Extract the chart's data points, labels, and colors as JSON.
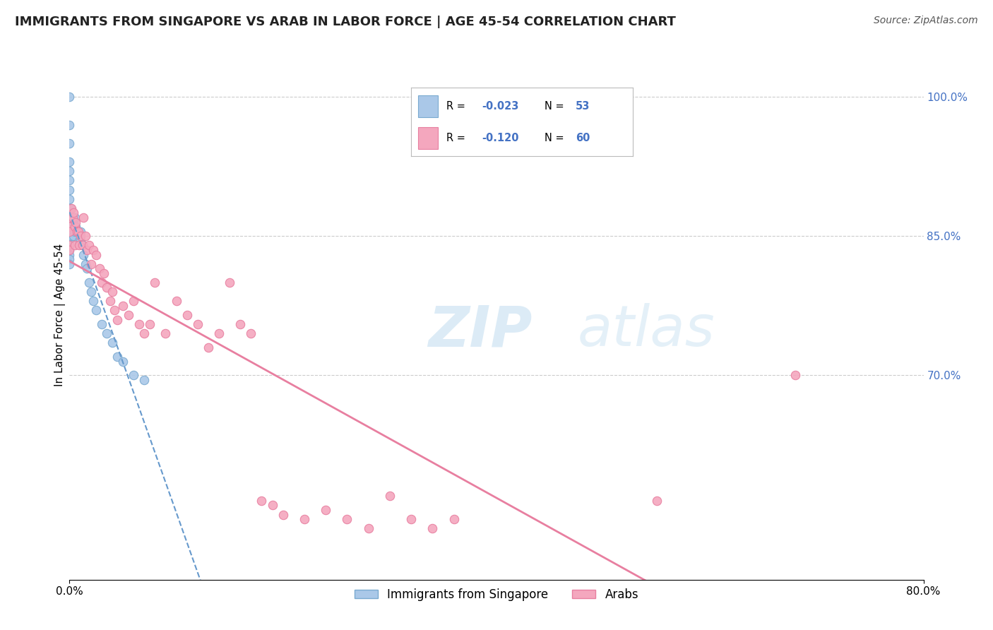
{
  "title": "IMMIGRANTS FROM SINGAPORE VS ARAB IN LABOR FORCE | AGE 45-54 CORRELATION CHART",
  "source": "Source: ZipAtlas.com",
  "ylabel": "In Labor Force | Age 45-54",
  "xlim": [
    0.0,
    0.8
  ],
  "ylim": [
    0.48,
    1.05
  ],
  "yticks": [
    0.7,
    0.85,
    1.0
  ],
  "ytick_labels": [
    "70.0%",
    "85.0%",
    "100.0%"
  ],
  "grid_color": "#cccccc",
  "background_color": "#ffffff",
  "singapore_color": "#aac8e8",
  "singapore_edge": "#7aaad0",
  "arab_color": "#f4a7be",
  "arab_edge": "#e87fa0",
  "singapore_R": "-0.023",
  "singapore_N": "53",
  "arab_R": "-0.120",
  "arab_N": "60",
  "trend_singapore_color": "#6699cc",
  "trend_arab_color": "#e87fa0",
  "watermark_zip": "ZIP",
  "watermark_atlas": "atlas",
  "singapore_points_x": [
    0.0,
    0.0,
    0.0,
    0.0,
    0.0,
    0.0,
    0.0,
    0.0,
    0.0,
    0.0,
    0.0,
    0.0,
    0.0,
    0.0,
    0.0,
    0.0,
    0.0,
    0.0,
    0.0,
    0.0,
    0.001,
    0.001,
    0.001,
    0.002,
    0.002,
    0.002,
    0.003,
    0.003,
    0.004,
    0.004,
    0.005,
    0.005,
    0.006,
    0.007,
    0.008,
    0.009,
    0.01,
    0.01,
    0.012,
    0.013,
    0.015,
    0.016,
    0.018,
    0.02,
    0.022,
    0.025,
    0.03,
    0.035,
    0.04,
    0.045,
    0.05,
    0.06,
    0.07
  ],
  "singapore_points_y": [
    1.0,
    0.97,
    0.95,
    0.93,
    0.92,
    0.91,
    0.9,
    0.89,
    0.88,
    0.875,
    0.87,
    0.86,
    0.855,
    0.85,
    0.845,
    0.84,
    0.835,
    0.83,
    0.825,
    0.82,
    0.88,
    0.865,
    0.855,
    0.87,
    0.86,
    0.85,
    0.87,
    0.855,
    0.865,
    0.85,
    0.87,
    0.855,
    0.86,
    0.855,
    0.855,
    0.845,
    0.855,
    0.845,
    0.84,
    0.83,
    0.82,
    0.815,
    0.8,
    0.79,
    0.78,
    0.77,
    0.755,
    0.745,
    0.735,
    0.72,
    0.715,
    0.7,
    0.695
  ],
  "arab_points_x": [
    0.0,
    0.0,
    0.0,
    0.0,
    0.0,
    0.002,
    0.003,
    0.004,
    0.005,
    0.005,
    0.006,
    0.007,
    0.008,
    0.009,
    0.01,
    0.012,
    0.013,
    0.015,
    0.016,
    0.018,
    0.02,
    0.022,
    0.025,
    0.028,
    0.03,
    0.032,
    0.035,
    0.038,
    0.04,
    0.042,
    0.045,
    0.05,
    0.055,
    0.06,
    0.065,
    0.07,
    0.075,
    0.08,
    0.09,
    0.1,
    0.11,
    0.12,
    0.13,
    0.14,
    0.15,
    0.16,
    0.17,
    0.18,
    0.19,
    0.2,
    0.22,
    0.24,
    0.26,
    0.28,
    0.3,
    0.32,
    0.34,
    0.36,
    0.55,
    0.68
  ],
  "arab_points_y": [
    0.87,
    0.86,
    0.855,
    0.84,
    0.835,
    0.88,
    0.87,
    0.875,
    0.86,
    0.84,
    0.865,
    0.855,
    0.855,
    0.84,
    0.85,
    0.84,
    0.87,
    0.85,
    0.835,
    0.84,
    0.82,
    0.835,
    0.83,
    0.815,
    0.8,
    0.81,
    0.795,
    0.78,
    0.79,
    0.77,
    0.76,
    0.775,
    0.765,
    0.78,
    0.755,
    0.745,
    0.755,
    0.8,
    0.745,
    0.78,
    0.765,
    0.755,
    0.73,
    0.745,
    0.8,
    0.755,
    0.745,
    0.565,
    0.56,
    0.55,
    0.545,
    0.555,
    0.545,
    0.535,
    0.57,
    0.545,
    0.535,
    0.545,
    0.565,
    0.7
  ],
  "marker_size": 80,
  "title_fontsize": 13,
  "source_fontsize": 10,
  "label_fontsize": 11,
  "tick_fontsize": 11,
  "legend_fontsize": 12
}
